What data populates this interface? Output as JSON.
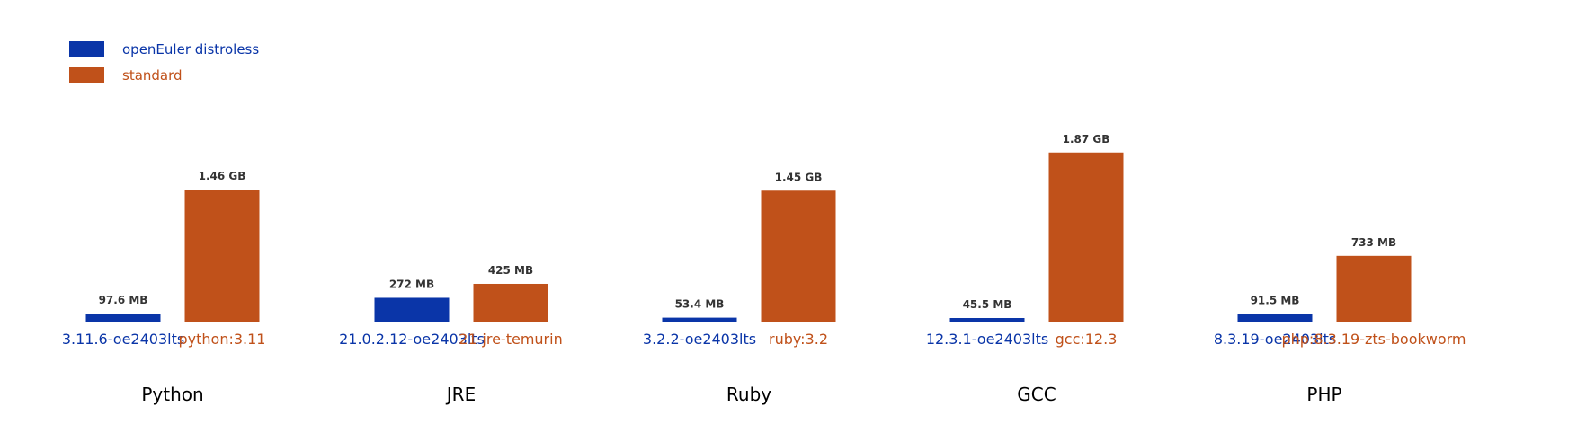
{
  "chart_data": {
    "type": "bar",
    "title": "",
    "xlabel": "",
    "ylabel": "",
    "unit": "MB",
    "legend": {
      "placement": "top-left",
      "entries": [
        {
          "name": "openEuler distroless",
          "color": "#0A35A8"
        },
        {
          "name": "standard",
          "color": "#C0511A"
        }
      ]
    },
    "colors": {
      "distroless": "#0A35A8",
      "standard": "#C0511A"
    },
    "ylim": [
      0,
      1900
    ],
    "grid": false,
    "groups": [
      {
        "name": "Python",
        "distroless": {
          "tag": "3.11.6-oe2403lts",
          "value": 97.6,
          "label": "97.6 MB"
        },
        "standard": {
          "tag": "python:3.11",
          "value": 1460,
          "label": "1.46 GB"
        }
      },
      {
        "name": "JRE",
        "distroless": {
          "tag": "21.0.2.12-oe2403lts",
          "value": 272,
          "label": "272 MB"
        },
        "standard": {
          "tag": "21-jre-temurin",
          "value": 425,
          "label": "425 MB"
        }
      },
      {
        "name": "Ruby",
        "distroless": {
          "tag": "3.2.2-oe2403lts",
          "value": 53.4,
          "label": "53.4 MB"
        },
        "standard": {
          "tag": "ruby:3.2",
          "value": 1450,
          "label": "1.45 GB"
        }
      },
      {
        "name": "GCC",
        "distroless": {
          "tag": "12.3.1-oe2403lts",
          "value": 45.5,
          "label": "45.5 MB"
        },
        "standard": {
          "tag": "gcc:12.3",
          "value": 1870,
          "label": "1.87 GB"
        }
      },
      {
        "name": "PHP",
        "distroless": {
          "tag": "8.3.19-oe2403lts",
          "value": 91.5,
          "label": "91.5 MB"
        },
        "standard": {
          "tag": "php:8.3.19-zts-bookworm",
          "value": 733,
          "label": "733 MB"
        }
      }
    ]
  }
}
